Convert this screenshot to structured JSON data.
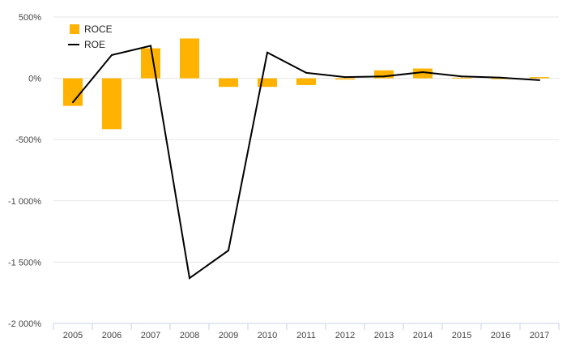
{
  "chart_data": {
    "type": "bar",
    "categories": [
      "2005",
      "2006",
      "2007",
      "2008",
      "2009",
      "2010",
      "2011",
      "2012",
      "2013",
      "2014",
      "2015",
      "2016",
      "2017"
    ],
    "series": [
      {
        "name": "ROCE",
        "type": "bar",
        "color": "#FFB300",
        "values": [
          -225,
          -415,
          245,
          325,
          -70,
          -70,
          -55,
          -10,
          65,
          80,
          5,
          0,
          10
        ]
      },
      {
        "name": "ROE",
        "type": "line",
        "color": "#000000",
        "values": [
          -195,
          190,
          265,
          -1630,
          -1405,
          210,
          45,
          10,
          15,
          50,
          15,
          5,
          -15
        ]
      }
    ],
    "yticks": [
      500,
      0,
      -500,
      -1000,
      -1500,
      -2000
    ],
    "ytick_labels": [
      "500%",
      "0%",
      "-500%",
      "-1 000%",
      "-1 500%",
      "-2 000%"
    ],
    "ylim": [
      -2000,
      500
    ],
    "grid": true,
    "legend": "top-left"
  }
}
